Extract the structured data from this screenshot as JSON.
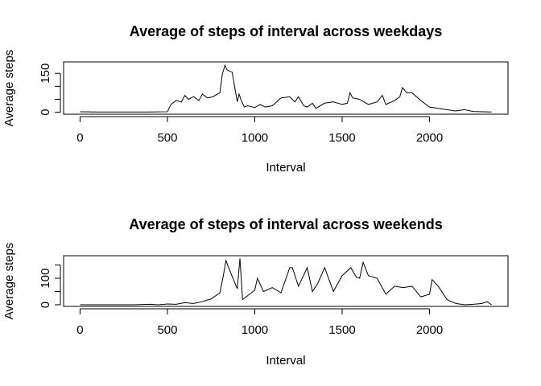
{
  "chart_data": [
    {
      "type": "line",
      "title": "Average of steps of interval across weekdays",
      "xlabel": "Interval",
      "ylabel": "Average steps",
      "x": [
        0,
        100,
        200,
        300,
        400,
        500,
        520,
        550,
        580,
        600,
        620,
        650,
        680,
        700,
        730,
        760,
        800,
        815,
        830,
        840,
        850,
        870,
        900,
        910,
        920,
        940,
        960,
        1000,
        1030,
        1060,
        1100,
        1150,
        1200,
        1230,
        1250,
        1280,
        1300,
        1330,
        1350,
        1400,
        1450,
        1500,
        1530,
        1545,
        1560,
        1600,
        1650,
        1700,
        1730,
        1750,
        1800,
        1830,
        1845,
        1870,
        1900,
        1950,
        2000,
        2050,
        2100,
        2150,
        2200,
        2250,
        2300,
        2355
      ],
      "series": [
        {
          "name": "weekdays",
          "color": "#000000",
          "values": [
            2,
            1,
            1,
            1,
            1,
            2,
            30,
            45,
            40,
            65,
            50,
            60,
            45,
            70,
            55,
            60,
            75,
            150,
            181,
            165,
            160,
            155,
            40,
            70,
            50,
            20,
            25,
            18,
            30,
            20,
            25,
            55,
            60,
            40,
            60,
            25,
            20,
            35,
            15,
            35,
            40,
            30,
            35,
            75,
            55,
            50,
            30,
            40,
            65,
            30,
            45,
            60,
            95,
            75,
            75,
            45,
            20,
            15,
            10,
            5,
            10,
            3,
            2,
            1
          ]
        }
      ],
      "xlim": [
        -94.2,
        2449.2
      ],
      "ylim": [
        -7.5,
        194
      ],
      "xticks": [
        0,
        500,
        1000,
        1500,
        2000
      ],
      "yticks": [
        0,
        {
          "value": 50,
          "label": null
        },
        {
          "value": 100,
          "label": null
        },
        150
      ]
    },
    {
      "type": "line",
      "title": "Average of steps of interval across weekends",
      "xlabel": "Interval",
      "ylabel": "Average steps",
      "x": [
        0,
        100,
        200,
        300,
        400,
        450,
        500,
        550,
        600,
        650,
        700,
        750,
        800,
        820,
        835,
        850,
        900,
        915,
        930,
        960,
        1000,
        1015,
        1050,
        1100,
        1150,
        1200,
        1215,
        1250,
        1300,
        1330,
        1360,
        1400,
        1450,
        1500,
        1550,
        1580,
        1600,
        1620,
        1650,
        1700,
        1750,
        1800,
        1850,
        1900,
        1950,
        2000,
        2015,
        2050,
        2100,
        2150,
        2200,
        2250,
        2300,
        2330,
        2355
      ],
      "series": [
        {
          "name": "weekends",
          "color": "#000000",
          "values": [
            0,
            0,
            0,
            0,
            2,
            0,
            3,
            2,
            8,
            5,
            12,
            22,
            45,
            110,
            167,
            140,
            60,
            175,
            20,
            35,
            55,
            100,
            50,
            65,
            45,
            140,
            140,
            70,
            140,
            50,
            80,
            140,
            50,
            110,
            140,
            105,
            100,
            160,
            110,
            100,
            40,
            70,
            65,
            70,
            30,
            40,
            95,
            70,
            20,
            5,
            0,
            2,
            5,
            12,
            0
          ]
        }
      ],
      "xlim": [
        -94.2,
        2449.2
      ],
      "ylim": [
        -6,
        185
      ],
      "xticks": [
        0,
        500,
        1000,
        1500,
        2000
      ],
      "yticks": [
        0,
        {
          "value": 50,
          "label": null
        },
        100,
        {
          "value": 150,
          "label": null
        }
      ]
    }
  ]
}
